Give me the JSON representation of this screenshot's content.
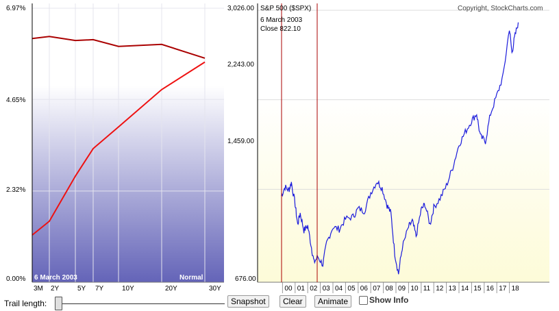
{
  "yield_curve": {
    "y_ticks": [
      "6.97%",
      "4.65%",
      "2.32%",
      "0.00%"
    ],
    "x_ticks": [
      "3M",
      "2Y",
      "5Y",
      "7Y",
      "10Y",
      "20Y",
      "30Y"
    ],
    "date_label": "6  March 2003",
    "mode_label": "Normal"
  },
  "spx": {
    "title": "S&P 500 ($SPX)",
    "copyright": "Copyright, StockCharts.com",
    "info_date": "6  March 2003",
    "info_close": "Close  822.10",
    "y_ticks": [
      "3,026.00",
      "2,243.00",
      "1,459.00",
      "676.00"
    ],
    "x_ticks": [
      "00",
      "01",
      "02",
      "03",
      "04",
      "05",
      "06",
      "07",
      "08",
      "09",
      "10",
      "11",
      "12",
      "13",
      "14",
      "15",
      "16",
      "17",
      "18"
    ]
  },
  "controls": {
    "trail_label": "Trail length:",
    "snapshot": "Snapshot",
    "clear": "Clear",
    "animate": "Animate",
    "show_info": "Show Info"
  },
  "colors": {
    "curve_current": "#ee1111",
    "curve_trail": "#aa0000",
    "spx_line": "#1a1adb",
    "marker": "#aa0000",
    "grad_top": "#ffffff",
    "grad_bottom": "#6464b8",
    "spx_bg_bottom": "#fdfbd8"
  },
  "chart_data": [
    {
      "type": "line",
      "series": [
        {
          "values": [
            1.2,
            1.55,
            2.7,
            3.4,
            3.95,
            4.9,
            5.6
          ]
        },
        {
          "values": [
            6.2,
            6.25,
            6.15,
            6.17,
            6.0,
            6.05,
            5.7
          ]
        }
      ],
      "categories": [
        "3M",
        "2Y",
        "5Y",
        "7Y",
        "10Y",
        "20Y",
        "30Y"
      ],
      "ylim": [
        0,
        6.97
      ],
      "title": "",
      "xlabel": "",
      "ylabel": ""
    },
    {
      "type": "line",
      "title": "S&P 500 ($SPX)",
      "x": [
        1999.9,
        2000.2,
        2000.5,
        2000.7,
        2001.0,
        2001.2,
        2001.4,
        2001.7,
        2002.0,
        2002.3,
        2002.5,
        2002.8,
        2003.2,
        2003.5,
        2004.0,
        2004.5,
        2005.0,
        2005.6,
        2006.0,
        2006.5,
        2007.0,
        2007.5,
        2007.9,
        2008.3,
        2008.6,
        2008.9,
        2009.2,
        2009.5,
        2010.0,
        2010.3,
        2010.6,
        2011.0,
        2011.3,
        2011.7,
        2012.0,
        2012.5,
        2013.0,
        2013.5,
        2014.0,
        2014.5,
        2015.0,
        2015.4,
        2015.7,
        2016.1,
        2016.5,
        2017.0,
        2017.5,
        2018.0,
        2018.2,
        2018.4,
        2018.7
      ],
      "y": [
        1400,
        1480,
        1450,
        1520,
        1330,
        1150,
        1250,
        1100,
        1140,
        950,
        820,
        870,
        800,
        990,
        1130,
        1110,
        1200,
        1220,
        1290,
        1270,
        1430,
        1530,
        1470,
        1320,
        1250,
        900,
        720,
        950,
        1130,
        1180,
        1050,
        1280,
        1330,
        1150,
        1300,
        1380,
        1490,
        1650,
        1850,
        1960,
        2060,
        2120,
        1920,
        1880,
        2120,
        2280,
        2450,
        2870,
        2650,
        2780,
        2920
      ],
      "ylim": [
        676,
        3026
      ],
      "xlabel": "",
      "ylabel": ""
    }
  ]
}
